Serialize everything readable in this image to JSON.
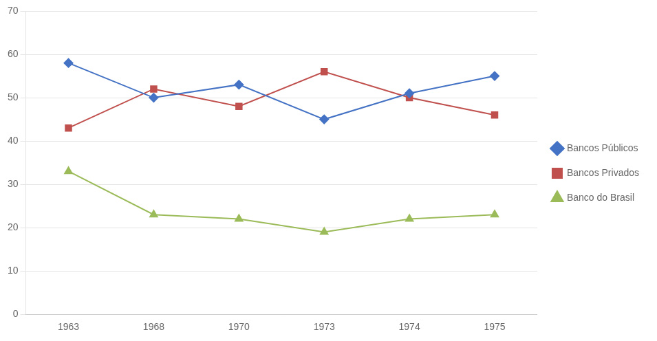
{
  "chart_data": {
    "type": "line",
    "categories": [
      "1963",
      "1968",
      "1970",
      "1973",
      "1974",
      "1975"
    ],
    "series": [
      {
        "name": "Bancos Públicos",
        "color": "#4472C4",
        "marker": "diamond",
        "values": [
          58,
          50,
          53,
          45,
          51,
          55
        ]
      },
      {
        "name": "Bancos Privados",
        "color": "#C0504D",
        "marker": "square",
        "values": [
          43,
          52,
          48,
          56,
          50,
          46
        ]
      },
      {
        "name": "Banco do Brasil",
        "color": "#9BBB59",
        "marker": "triangle",
        "values": [
          33,
          23,
          22,
          19,
          22,
          23
        ]
      }
    ],
    "ylim": [
      0,
      70
    ],
    "yticks": [
      0,
      10,
      20,
      30,
      40,
      50,
      60,
      70
    ],
    "grid": true,
    "legend": "right"
  }
}
